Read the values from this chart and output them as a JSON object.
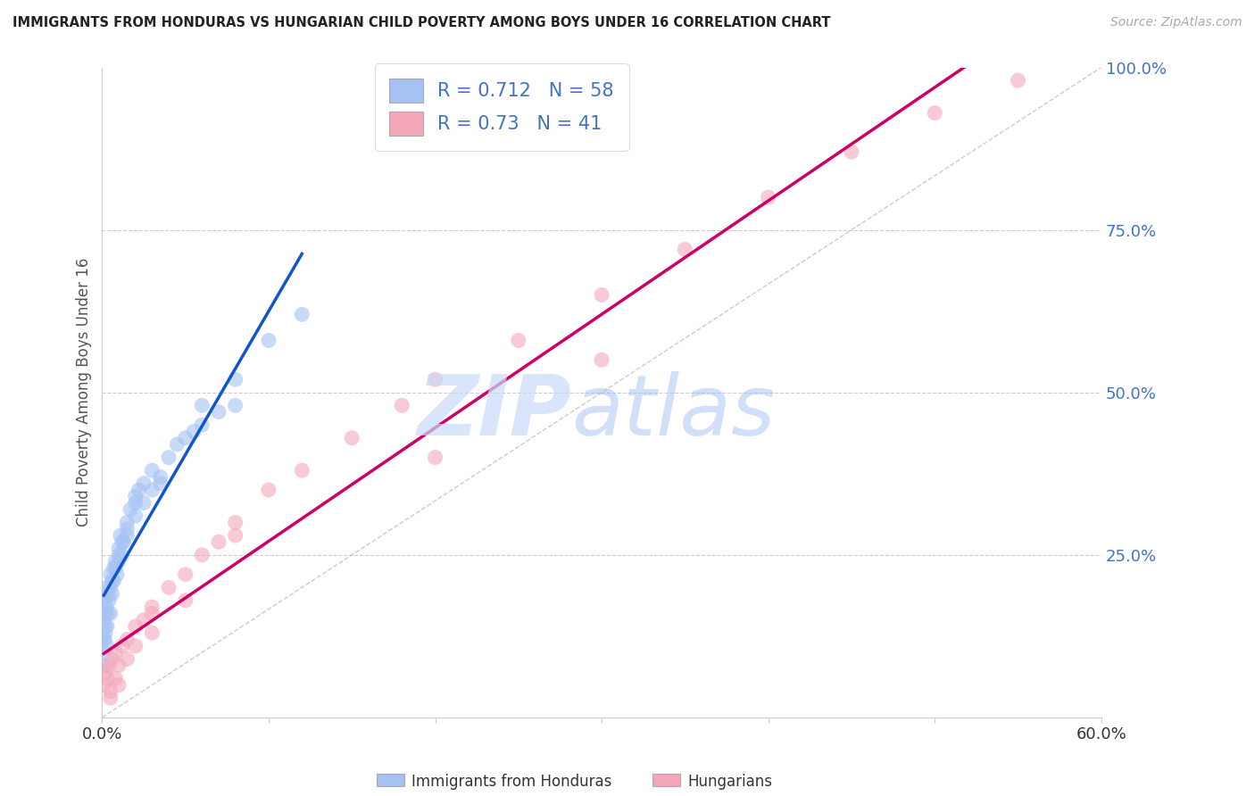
{
  "title": "IMMIGRANTS FROM HONDURAS VS HUNGARIAN CHILD POVERTY AMONG BOYS UNDER 16 CORRELATION CHART",
  "source": "Source: ZipAtlas.com",
  "ylabel": "Child Poverty Among Boys Under 16",
  "watermark_zip": "ZIP",
  "watermark_atlas": "atlas",
  "legend1_label": "Immigrants from Honduras",
  "legend2_label": "Hungarians",
  "R1": 0.712,
  "N1": 58,
  "R2": 0.73,
  "N2": 41,
  "blue_color": "#a4c2f4",
  "pink_color": "#f4a7b9",
  "blue_line_color": "#1155cc",
  "pink_line_color": "#cc0066",
  "gray_dash_color": "#aaaaaa",
  "blue_scatter": [
    [
      0.1,
      15
    ],
    [
      0.15,
      18
    ],
    [
      0.2,
      14
    ],
    [
      0.25,
      17
    ],
    [
      0.3,
      20
    ],
    [
      0.35,
      16
    ],
    [
      0.4,
      19
    ],
    [
      0.5,
      22
    ],
    [
      0.6,
      21
    ],
    [
      0.7,
      23
    ],
    [
      0.8,
      24
    ],
    [
      0.9,
      22
    ],
    [
      1.0,
      26
    ],
    [
      1.1,
      28
    ],
    [
      1.2,
      25
    ],
    [
      1.3,
      27
    ],
    [
      1.5,
      30
    ],
    [
      1.7,
      32
    ],
    [
      2.0,
      33
    ],
    [
      2.2,
      35
    ],
    [
      2.5,
      36
    ],
    [
      3.0,
      38
    ],
    [
      3.5,
      37
    ],
    [
      4.0,
      40
    ],
    [
      4.5,
      42
    ],
    [
      5.0,
      43
    ],
    [
      5.5,
      44
    ],
    [
      6.0,
      45
    ],
    [
      7.0,
      47
    ],
    [
      8.0,
      48
    ],
    [
      0.1,
      12
    ],
    [
      0.2,
      16
    ],
    [
      0.3,
      14
    ],
    [
      0.4,
      18
    ],
    [
      0.5,
      20
    ],
    [
      0.6,
      19
    ],
    [
      0.8,
      23
    ],
    [
      1.0,
      24
    ],
    [
      1.2,
      27
    ],
    [
      1.5,
      28
    ],
    [
      2.0,
      31
    ],
    [
      2.5,
      33
    ],
    [
      3.0,
      35
    ],
    [
      3.5,
      36
    ],
    [
      0.1,
      10
    ],
    [
      0.2,
      13
    ],
    [
      0.3,
      11
    ],
    [
      0.5,
      16
    ],
    [
      0.7,
      21
    ],
    [
      1.0,
      25
    ],
    [
      1.5,
      29
    ],
    [
      2.0,
      34
    ],
    [
      0.1,
      8
    ],
    [
      0.15,
      12
    ],
    [
      10.0,
      58
    ],
    [
      12.0,
      62
    ],
    [
      8.0,
      52
    ],
    [
      6.0,
      48
    ]
  ],
  "pink_scatter": [
    [
      0.1,
      5
    ],
    [
      0.2,
      7
    ],
    [
      0.3,
      6
    ],
    [
      0.4,
      8
    ],
    [
      0.5,
      4
    ],
    [
      0.6,
      9
    ],
    [
      0.8,
      10
    ],
    [
      1.0,
      8
    ],
    [
      1.2,
      11
    ],
    [
      1.5,
      12
    ],
    [
      2.0,
      14
    ],
    [
      2.5,
      15
    ],
    [
      3.0,
      17
    ],
    [
      0.5,
      3
    ],
    [
      0.8,
      6
    ],
    [
      1.0,
      5
    ],
    [
      1.5,
      9
    ],
    [
      2.0,
      11
    ],
    [
      3.0,
      16
    ],
    [
      4.0,
      20
    ],
    [
      5.0,
      22
    ],
    [
      6.0,
      25
    ],
    [
      7.0,
      27
    ],
    [
      8.0,
      30
    ],
    [
      10.0,
      35
    ],
    [
      12.0,
      38
    ],
    [
      15.0,
      43
    ],
    [
      18.0,
      48
    ],
    [
      20.0,
      52
    ],
    [
      25.0,
      58
    ],
    [
      30.0,
      65
    ],
    [
      35.0,
      72
    ],
    [
      40.0,
      80
    ],
    [
      45.0,
      87
    ],
    [
      50.0,
      93
    ],
    [
      55.0,
      98
    ],
    [
      3.0,
      13
    ],
    [
      5.0,
      18
    ],
    [
      8.0,
      28
    ],
    [
      20.0,
      40
    ],
    [
      30.0,
      55
    ]
  ],
  "xlim": [
    0,
    60
  ],
  "ylim": [
    0,
    100
  ],
  "blue_line_x": [
    0.1,
    12.0
  ],
  "blue_line_y": [
    14,
    68
  ],
  "pink_line_x": [
    0.1,
    57
  ],
  "pink_line_y": [
    2,
    100
  ]
}
